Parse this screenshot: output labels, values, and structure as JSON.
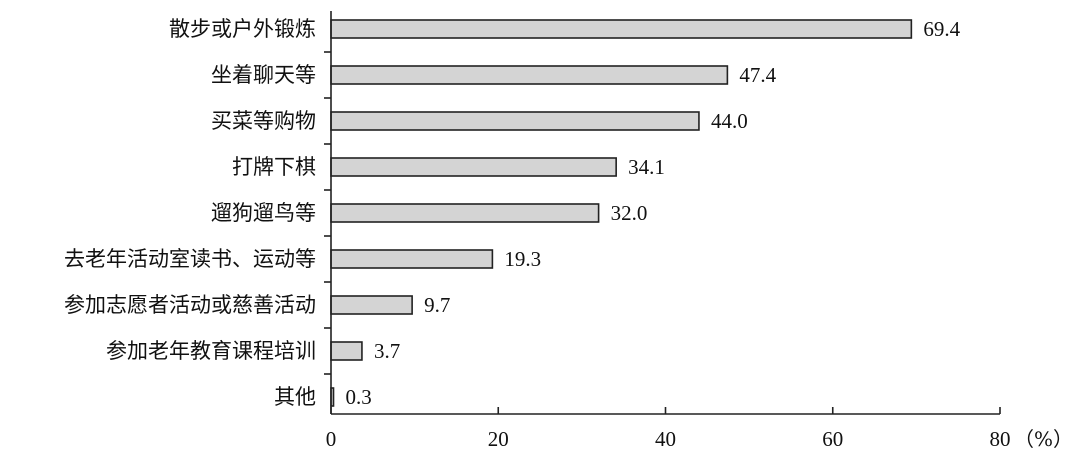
{
  "chart_data": {
    "type": "bar",
    "orientation": "horizontal",
    "categories": [
      "散步或户外锻炼",
      "坐着聊天等",
      "买菜等购物",
      "打牌下棋",
      "遛狗遛鸟等",
      "去老年活动室读书、运动等",
      "参加志愿者活动或慈善活动",
      "参加老年教育课程培训",
      "其他"
    ],
    "values": [
      69.4,
      47.4,
      44.0,
      34.1,
      32.0,
      19.3,
      9.7,
      3.7,
      0.3
    ],
    "value_labels": [
      "69.4",
      "47.4",
      "44.0",
      "34.1",
      "32.0",
      "19.3",
      "9.7",
      "3.7",
      "0.3"
    ],
    "xlim": [
      0,
      80
    ],
    "xticks": [
      0,
      20,
      40,
      60,
      80
    ],
    "xtick_labels": [
      "0",
      "20",
      "40",
      "60",
      "80"
    ],
    "unit_label": "（%）",
    "grid": false,
    "bar_color": "#d4d4d4"
  }
}
